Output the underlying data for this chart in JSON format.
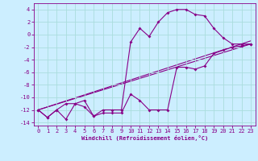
{
  "xlabel": "Windchill (Refroidissement éolien,°C)",
  "bg_color": "#cceeff",
  "grid_color": "#aadddd",
  "line_color": "#880088",
  "xlim": [
    -0.5,
    23.5
  ],
  "ylim": [
    -14.5,
    5.0
  ],
  "xticks": [
    0,
    1,
    2,
    3,
    4,
    5,
    6,
    7,
    8,
    9,
    10,
    11,
    12,
    13,
    14,
    15,
    16,
    17,
    18,
    19,
    20,
    21,
    22,
    23
  ],
  "yticks": [
    -14,
    -12,
    -10,
    -8,
    -6,
    -4,
    -2,
    0,
    2,
    4
  ],
  "series_lower_x": [
    0,
    1,
    2,
    3,
    4,
    5,
    6,
    7,
    8,
    9,
    10,
    11,
    12,
    13,
    14,
    15,
    16,
    17,
    18,
    19,
    20,
    21,
    22,
    23
  ],
  "series_lower_y": [
    -12.0,
    -13.2,
    -12.0,
    -13.5,
    -11.0,
    -11.5,
    -13.0,
    -12.5,
    -12.5,
    -12.5,
    -9.5,
    -10.5,
    -12.0,
    -12.0,
    -12.0,
    -5.2,
    -5.2,
    -5.5,
    -5.0,
    -3.0,
    -2.5,
    -2.0,
    -1.8,
    -1.5
  ],
  "series_upper_x": [
    0,
    1,
    2,
    3,
    4,
    5,
    6,
    7,
    8,
    9,
    10,
    11,
    12,
    13,
    14,
    15,
    16,
    17,
    18,
    19,
    20,
    21,
    22,
    23
  ],
  "series_upper_y": [
    -12.0,
    -13.2,
    -12.0,
    -11.0,
    -11.0,
    -10.5,
    -13.0,
    -12.0,
    -12.0,
    -12.0,
    -1.2,
    1.0,
    -0.3,
    2.0,
    3.5,
    4.0,
    4.0,
    3.2,
    3.0,
    1.0,
    -0.5,
    -1.5,
    -1.5,
    -1.5
  ],
  "line1_x": [
    0,
    23
  ],
  "line1_y": [
    -12.0,
    -1.5
  ],
  "line2_x": [
    0,
    23
  ],
  "line2_y": [
    -12.0,
    -1.0
  ],
  "xlabel_fontsize": 5.0,
  "tick_fontsize": 5.0
}
